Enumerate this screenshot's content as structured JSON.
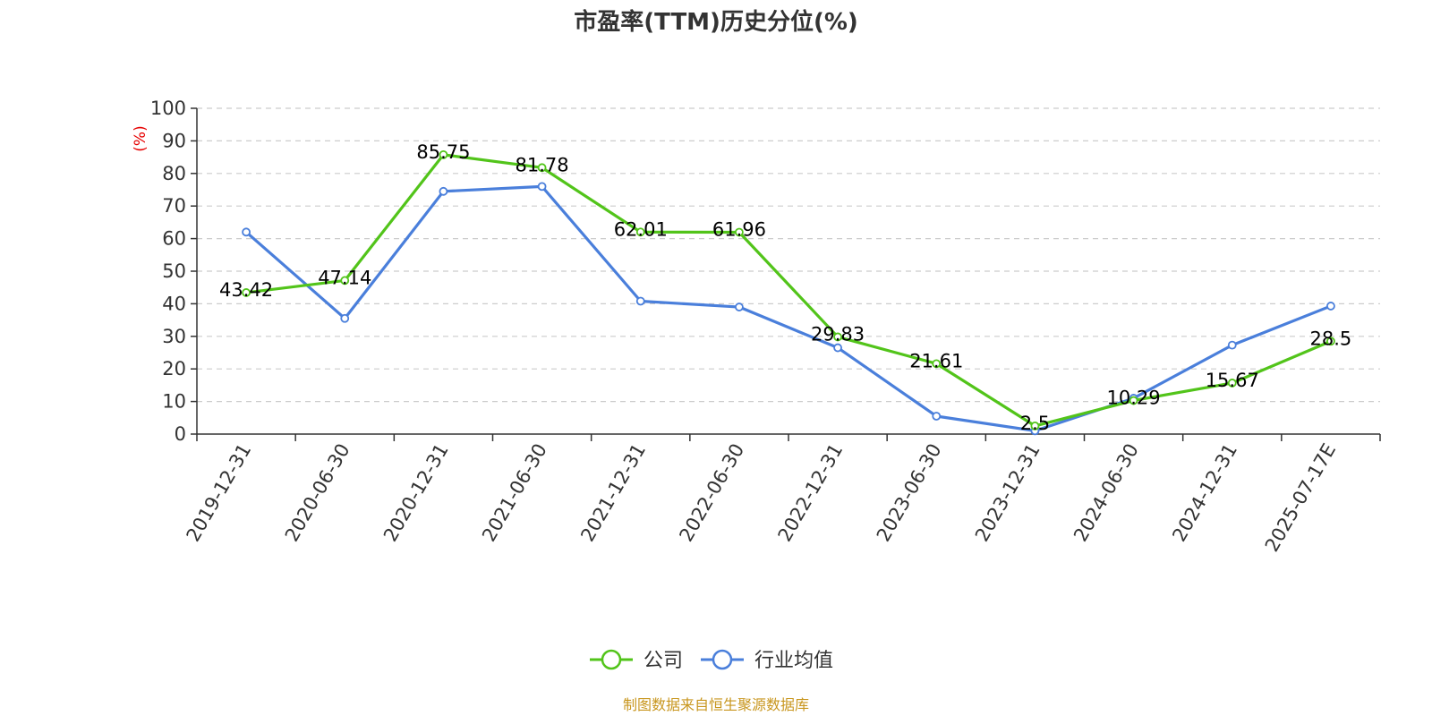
{
  "chart_data": {
    "type": "line",
    "title": "市盈率(TTM)历史分位(%)",
    "ylabel": "(%)",
    "xlabel": "",
    "ylim": [
      0,
      100
    ],
    "y_ticks": [
      0,
      10,
      20,
      30,
      40,
      50,
      60,
      70,
      80,
      90,
      100
    ],
    "grid": true,
    "legend_position": "bottom-center",
    "categories": [
      "2019-12-31",
      "2020-06-30",
      "2020-12-31",
      "2021-06-30",
      "2021-12-31",
      "2022-06-30",
      "2022-12-31",
      "2023-06-30",
      "2023-12-31",
      "2024-06-30",
      "2024-12-31",
      "2025-07-17E"
    ],
    "series": [
      {
        "name": "公司",
        "color": "#52c41a",
        "show_labels": true,
        "values": [
          43.42,
          47.14,
          85.75,
          81.78,
          62.01,
          61.96,
          29.83,
          21.61,
          2.5,
          10.29,
          15.67,
          28.5
        ]
      },
      {
        "name": "行业均值",
        "color": "#4a7fdb",
        "show_labels": false,
        "values": [
          62,
          35.5,
          74.5,
          76,
          40.8,
          39,
          26.5,
          5.5,
          1,
          11,
          27.3,
          39.3
        ]
      }
    ],
    "source": "制图数据来自恒生聚源数据库"
  },
  "colors": {
    "title": "#333333",
    "axis": "#333333",
    "grid": "#cccccc",
    "unit": "#e60000",
    "source": "#c8961e"
  }
}
